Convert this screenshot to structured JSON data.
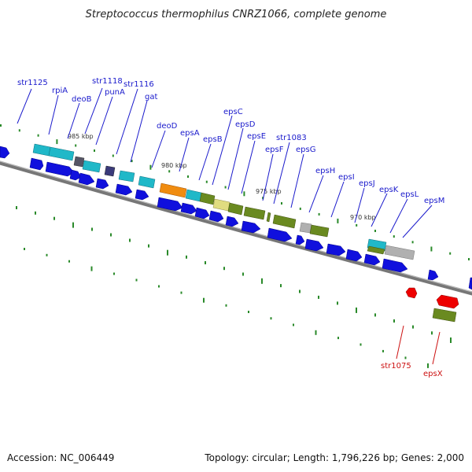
{
  "title": "Streptococcus thermophilus CNRZ1066, complete genome",
  "footer": {
    "accession": "Accession: NC_006449",
    "summary": "Topology: circular; Length: 1,796,226 bp; Genes: 2,000"
  },
  "scale_labels": [
    "985 kbp",
    "980 kbp",
    "975 kbp",
    "970 kbp"
  ],
  "colors": {
    "plus_strand_gene": "#1010dd",
    "cyan_gene": "#20b8c8",
    "olive_gene": "#6a8a20",
    "orange_gene": "#f08c10",
    "grey_gene": "#b0b0b0",
    "yellow_gene": "#e0dc80",
    "dark_grey_gene": "#555566",
    "navy_gene": "#3a3a7a",
    "minus_strand_gene": "#ee0000",
    "backbone": "#777777",
    "tick": "#2a8a2a",
    "label_blue": "#1a1acc",
    "label_red": "#cc1111"
  },
  "gene_labels": {
    "top": [
      "str1125",
      "rpiA",
      "deoB",
      "str1118",
      "punA",
      "str1116",
      "gat",
      "deoD",
      "epsA",
      "epsB",
      "epsC",
      "epsD",
      "epsE",
      "epsF",
      "str1083",
      "epsG",
      "epsH",
      "epsI",
      "epsJ",
      "epsK",
      "epsL",
      "epsM"
    ],
    "bottom": [
      "str1075",
      "epsX"
    ]
  }
}
